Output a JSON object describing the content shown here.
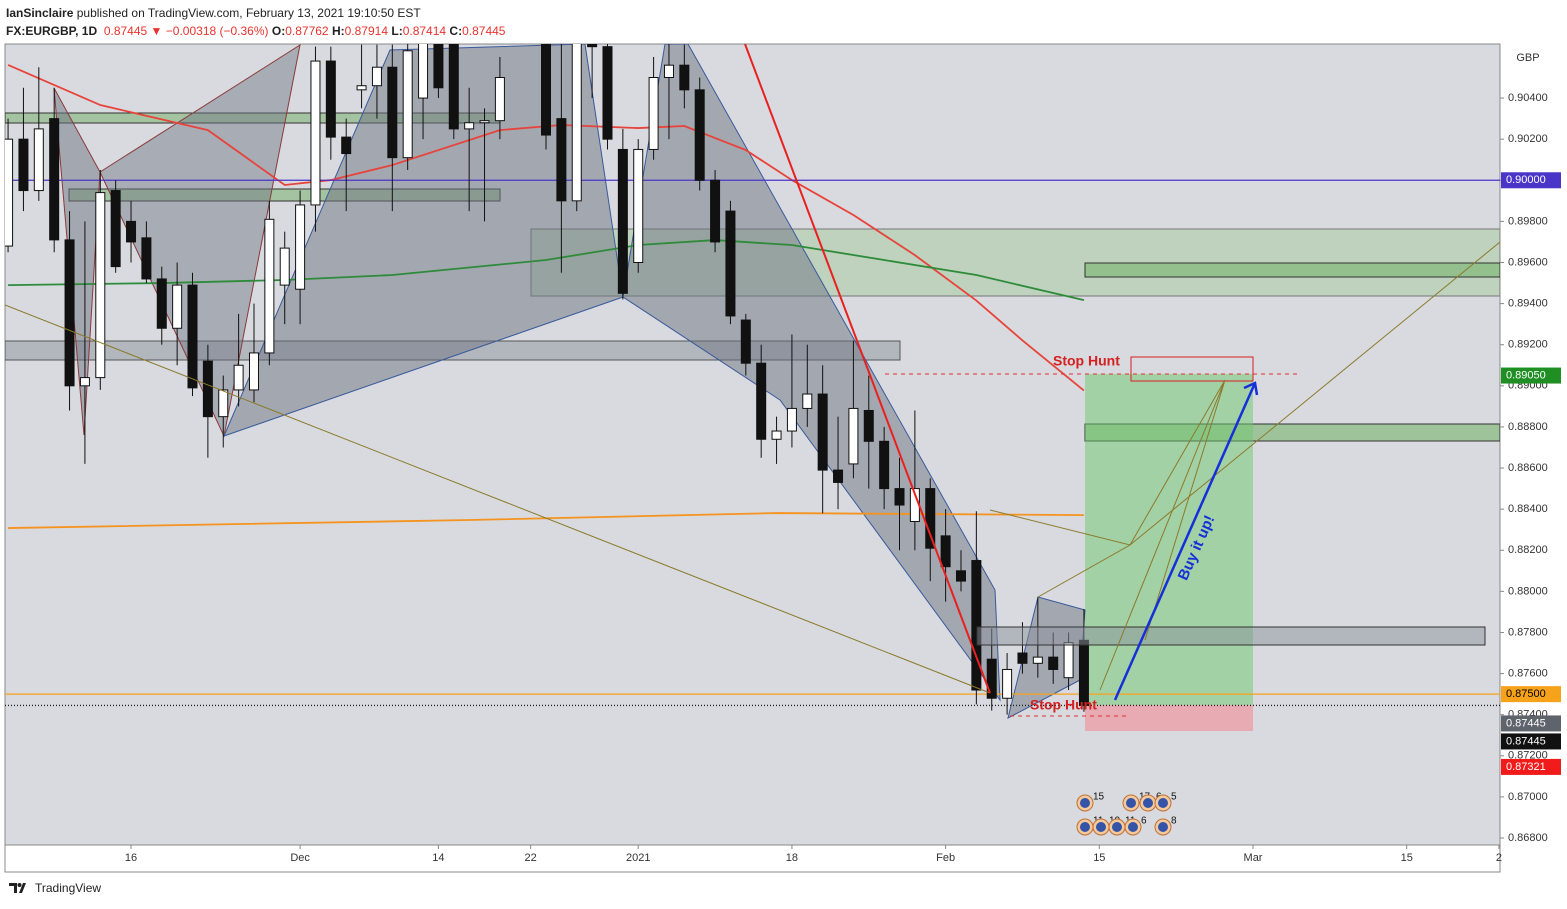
{
  "header": {
    "author": "IanSinclaire",
    "published": "published on TradingView.com, February 13, 2021 19:10:50 EST",
    "symbol": "FX:EURGBP, 1D",
    "last": "0.87445",
    "arrow": "▼",
    "change": "−0.00318 (−0.36%)",
    "o_label": "O:",
    "o": "0.87762",
    "h_label": "H:",
    "h": "0.87914",
    "l_label": "L:",
    "l": "0.87414",
    "c_label": "C:",
    "c": "0.87445"
  },
  "chart_data": {
    "type": "candlestick",
    "currency": "GBP",
    "grid": false,
    "open": [
      0.8968,
      0.902,
      0.8995,
      0.903,
      0.8971,
      0.89,
      0.8904,
      0.8995,
      0.898,
      0.8972,
      0.8952,
      0.8928,
      0.8949,
      0.8912,
      0.8885,
      0.8898,
      0.8898,
      0.8916,
      0.8949,
      0.8947,
      0.8988,
      0.9058,
      0.9021,
      0.9044,
      0.9046,
      0.9055,
      0.9011,
      0.904,
      0.907,
      0.9075,
      0.9025,
      0.9028,
      0.9029,
      null,
      null,
      0.908,
      0.903,
      0.899,
      0.907,
      0.9065,
      0.9015,
      0.896,
      0.9015,
      0.905,
      0.9056,
      0.9044,
      0.9,
      0.8985,
      0.8932,
      0.8911,
      0.8874,
      0.8878,
      0.8889,
      0.8896,
      0.8859,
      0.8862,
      0.8888,
      0.8873,
      0.885,
      0.8834,
      0.885,
      0.8827,
      0.881,
      0.8815,
      0.8767,
      0.8748,
      0.877,
      0.8765,
      0.8768,
      0.8758,
      0.87762
    ],
    "high": [
      0.903,
      0.9045,
      0.9055,
      0.9045,
      0.8985,
      0.898,
      0.9005,
      0.9,
      0.899,
      0.898,
      0.8958,
      0.896,
      0.8955,
      0.892,
      0.8905,
      0.8935,
      0.894,
      0.899,
      0.8975,
      0.8995,
      0.9065,
      0.9065,
      0.903,
      0.9066,
      0.9066,
      0.9066,
      0.907,
      0.9075,
      0.908,
      0.9085,
      0.9045,
      0.9035,
      0.906,
      null,
      null,
      0.909,
      0.907,
      0.908,
      0.909,
      0.908,
      0.9025,
      0.902,
      0.906,
      0.9075,
      0.9066,
      0.905,
      0.9005,
      0.899,
      0.8935,
      0.892,
      0.8885,
      0.8925,
      0.892,
      0.891,
      0.8885,
      0.8922,
      0.8905,
      0.888,
      0.8865,
      0.8888,
      0.8855,
      0.884,
      0.882,
      0.8839,
      0.8782,
      0.877,
      0.8785,
      0.8797,
      0.878,
      0.878,
      0.87914
    ],
    "low": [
      0.8965,
      0.8985,
      0.899,
      0.8965,
      0.8888,
      0.8862,
      0.8898,
      0.8955,
      0.896,
      0.895,
      0.892,
      0.891,
      0.8895,
      0.8865,
      0.887,
      0.889,
      0.8892,
      0.891,
      0.893,
      0.893,
      0.8975,
      0.901,
      0.8985,
      0.9035,
      0.903,
      0.8985,
      0.9005,
      0.902,
      0.904,
      0.902,
      0.8985,
      0.898,
      0.902,
      null,
      null,
      0.9015,
      0.8955,
      0.8985,
      0.904,
      0.9015,
      0.8942,
      0.8955,
      0.901,
      0.902,
      0.9035,
      0.8995,
      0.8965,
      0.893,
      0.8905,
      0.8865,
      0.8862,
      0.887,
      0.888,
      0.8838,
      0.884,
      0.8855,
      0.885,
      0.884,
      0.882,
      0.882,
      0.8805,
      0.8795,
      0.88,
      0.8745,
      0.8742,
      0.874,
      0.876,
      0.8758,
      0.8755,
      0.8752,
      0.87414
    ],
    "close": [
      0.902,
      0.8995,
      0.9025,
      0.8971,
      0.89,
      0.8904,
      0.8994,
      0.8958,
      0.897,
      0.8952,
      0.8928,
      0.8949,
      0.8899,
      0.8885,
      0.8898,
      0.891,
      0.8916,
      0.8981,
      0.8967,
      0.8988,
      0.9058,
      0.9021,
      0.9013,
      0.9046,
      0.9055,
      0.9011,
      0.9063,
      0.9068,
      0.9045,
      0.9025,
      0.9028,
      0.9029,
      0.905,
      null,
      null,
      0.9022,
      0.899,
      0.907,
      0.9065,
      0.902,
      0.8945,
      0.9015,
      0.905,
      0.9056,
      0.9044,
      0.9,
      0.897,
      0.8934,
      0.8911,
      0.8874,
      0.8878,
      0.8889,
      0.8896,
      0.8859,
      0.8853,
      0.8889,
      0.8873,
      0.885,
      0.8842,
      0.885,
      0.8821,
      0.8812,
      0.8805,
      0.8752,
      0.8748,
      0.8762,
      0.8765,
      0.8768,
      0.8762,
      0.8775,
      0.87445
    ],
    "series": [
      {
        "color": "#e8433a",
        "x": [
          0,
          6,
          13,
          18,
          21,
          25,
          32,
          36,
          41,
          44,
          48,
          51,
          55,
          59,
          63,
          66,
          70
        ],
        "values": [
          0.90561,
          0.90366,
          0.90244,
          0.89977,
          0.90001,
          0.90074,
          0.90244,
          0.90269,
          0.90254,
          0.90264,
          0.90147,
          0.90001,
          0.89831,
          0.89636,
          0.89415,
          0.89221,
          0.88977
        ]
      },
      {
        "color": "#2e8b3a",
        "x": [
          0,
          10,
          18,
          25,
          35,
          41,
          46,
          51,
          57,
          63,
          70
        ],
        "values": [
          0.8949,
          0.895,
          0.89515,
          0.89539,
          0.89612,
          0.89685,
          0.89709,
          0.89685,
          0.89612,
          0.89539,
          0.89417
        ]
      },
      {
        "color": "#f5931e",
        "x": [
          0,
          30,
          50,
          70
        ],
        "values": [
          0.88308,
          0.88347,
          0.88381,
          0.88371
        ]
      }
    ],
    "xlim": [
      -0.2,
      97.07
    ],
    "ylim": [
      0.86766,
      0.90663
    ],
    "xticks": [
      {
        "value": 8,
        "label": "16"
      },
      {
        "value": 19,
        "label": "Dec"
      },
      {
        "value": 28,
        "label": "14"
      },
      {
        "value": 34,
        "label": "22"
      },
      {
        "value": 41,
        "label": "2021"
      },
      {
        "value": 51,
        "label": "18"
      },
      {
        "value": 61,
        "label": "Feb"
      },
      {
        "value": 71,
        "label": "15"
      },
      {
        "value": 81,
        "label": "Mar"
      },
      {
        "value": 91,
        "label": "15"
      },
      {
        "value": 97,
        "label": "2"
      }
    ],
    "yticks": [
      {
        "value": 0.868,
        "label": "0.86800"
      },
      {
        "value": 0.87,
        "label": "0.87000"
      },
      {
        "value": 0.872,
        "label": "0.87200"
      },
      {
        "value": 0.874,
        "label": "0.87400"
      },
      {
        "value": 0.876,
        "label": "0.87600"
      },
      {
        "value": 0.878,
        "label": "0.87800"
      },
      {
        "value": 0.88,
        "label": "0.88000"
      },
      {
        "value": 0.882,
        "label": "0.88200"
      },
      {
        "value": 0.884,
        "label": "0.88400"
      },
      {
        "value": 0.886,
        "label": "0.88600"
      },
      {
        "value": 0.888,
        "label": "0.88800"
      },
      {
        "value": 0.89,
        "label": "0.89000"
      },
      {
        "value": 0.892,
        "label": "0.89200"
      },
      {
        "value": 0.894,
        "label": "0.89400"
      },
      {
        "value": 0.896,
        "label": "0.89600"
      },
      {
        "value": 0.898,
        "label": "0.89800"
      },
      {
        "value": 0.9,
        "label": "0.90000"
      },
      {
        "value": 0.902,
        "label": "0.90200"
      },
      {
        "value": 0.904,
        "label": "0.90400"
      }
    ],
    "price_labels": [
      {
        "value": 0.9,
        "label": "0.90000",
        "color": "#4b35c9",
        "line": true
      },
      {
        "value": 0.8905,
        "label": "0.89050",
        "color": "#1f8f24"
      },
      {
        "value": 0.875,
        "label": "0.87500",
        "color": "#f7a21b",
        "line": true
      },
      {
        "value": 0.87445,
        "label": "0.87445",
        "color": "#5f636b",
        "line": true
      },
      {
        "value": 0.87445,
        "label": "0.87445",
        "color": "#111111"
      },
      {
        "value": 0.87321,
        "label": "0.87321",
        "color": "#f21b1b"
      }
    ],
    "annotations": [
      "Stop Hunt",
      "Stop Hunt",
      "Buy it up!"
    ],
    "events_top": [
      "15",
      "17",
      "6",
      "5"
    ],
    "events_bottom": [
      "11",
      "10",
      "11",
      "6",
      "8"
    ]
  },
  "footer": {
    "brand": "TradingView"
  }
}
